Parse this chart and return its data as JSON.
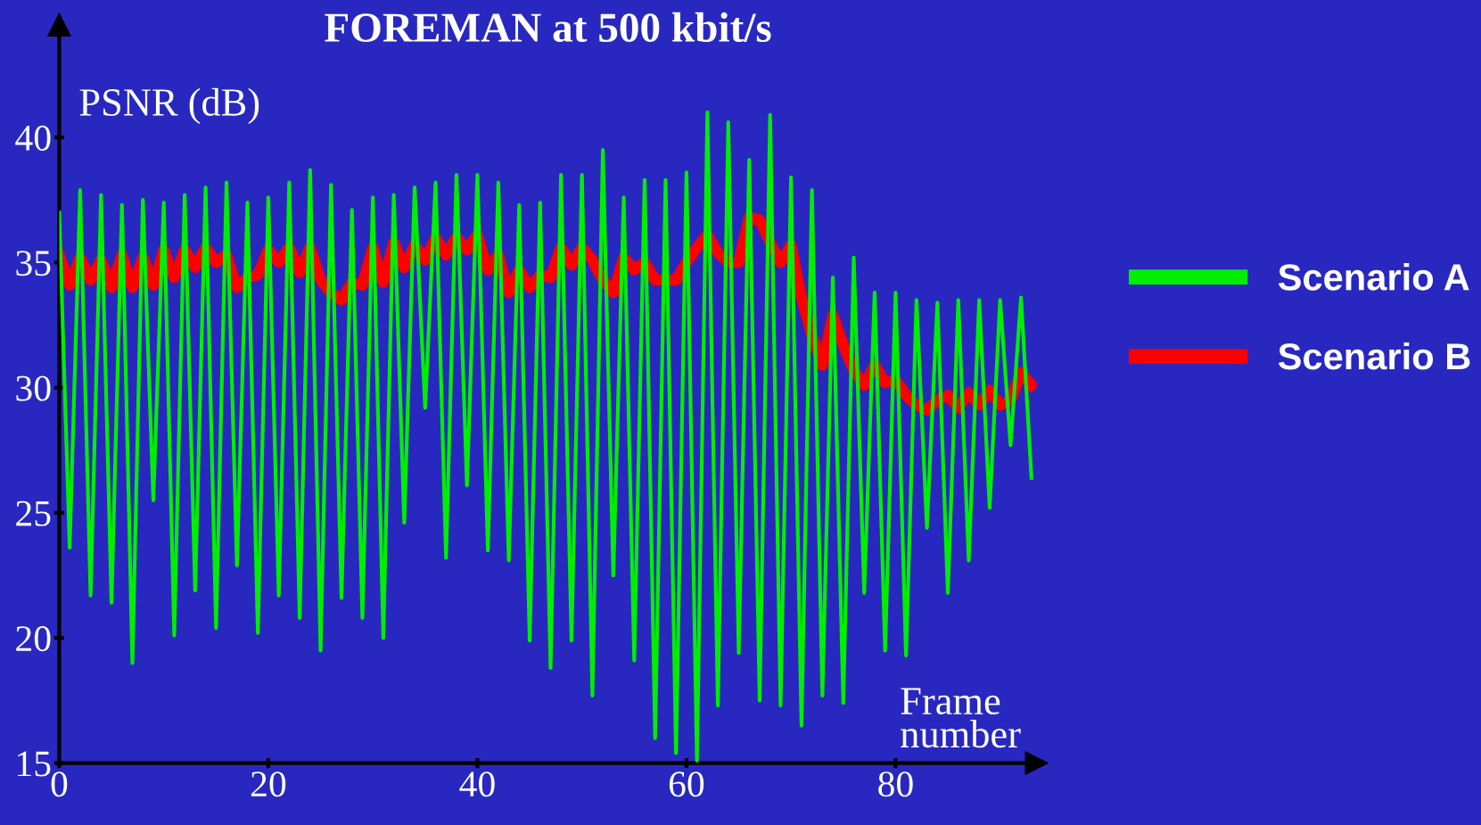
{
  "chart_data": {
    "type": "line",
    "title": "FOREMAN at 500 kbit/s",
    "xlabel": "Frame\nnumber",
    "ylabel": "PSNR (dB)",
    "x": [
      0,
      1,
      2,
      3,
      4,
      5,
      6,
      7,
      8,
      9,
      10,
      11,
      12,
      13,
      14,
      15,
      16,
      17,
      18,
      19,
      20,
      21,
      22,
      23,
      24,
      25,
      26,
      27,
      28,
      29,
      30,
      31,
      32,
      33,
      34,
      35,
      36,
      37,
      38,
      39,
      40,
      41,
      42,
      43,
      44,
      45,
      46,
      47,
      48,
      49,
      50,
      51,
      52,
      53,
      54,
      55,
      56,
      57,
      58,
      59,
      60,
      61,
      62,
      63,
      64,
      65,
      66,
      67,
      68,
      69,
      70,
      71,
      72,
      73,
      74,
      75,
      76,
      77,
      78,
      79,
      80,
      81,
      82,
      83,
      84,
      85,
      86,
      87,
      88,
      89,
      90,
      91,
      92,
      93
    ],
    "series": [
      {
        "name": "Scenario A",
        "color": "#00ee00",
        "values": [
          37.0,
          23.6,
          37.9,
          21.7,
          37.7,
          21.4,
          37.3,
          19.0,
          37.5,
          25.5,
          37.4,
          20.1,
          37.7,
          21.9,
          38.0,
          20.4,
          38.2,
          22.9,
          37.4,
          20.2,
          37.6,
          21.7,
          38.2,
          20.8,
          38.7,
          19.5,
          38.1,
          21.6,
          37.1,
          20.8,
          37.6,
          20.0,
          37.7,
          24.6,
          38.0,
          29.2,
          38.2,
          23.2,
          38.5,
          26.1,
          38.5,
          23.5,
          38.2,
          23.1,
          37.3,
          19.9,
          37.4,
          18.8,
          38.5,
          19.9,
          38.5,
          17.7,
          39.5,
          22.5,
          37.6,
          19.1,
          38.3,
          16.0,
          38.3,
          15.4,
          38.6,
          15.1,
          41.0,
          17.3,
          40.6,
          19.4,
          39.1,
          17.5,
          40.9,
          17.3,
          38.4,
          16.5,
          37.9,
          17.7,
          34.4,
          17.4,
          35.2,
          21.8,
          33.8,
          19.5,
          33.8,
          19.3,
          33.5,
          24.4,
          33.4,
          21.8,
          33.5,
          23.1,
          33.5,
          25.2,
          33.5,
          27.7,
          33.6,
          26.4
        ]
      },
      {
        "name": "Scenario B",
        "color": "#ff0000",
        "values": [
          35.3,
          34.1,
          35.2,
          34.3,
          35.1,
          34.0,
          35.3,
          34.0,
          35.2,
          34.1,
          35.5,
          34.4,
          35.5,
          34.8,
          35.6,
          35.0,
          35.3,
          34.0,
          34.4,
          34.5,
          35.5,
          35.0,
          35.6,
          34.6,
          35.6,
          34.3,
          33.8,
          33.5,
          34.2,
          34.1,
          35.6,
          34.2,
          35.8,
          34.8,
          35.7,
          35.1,
          36.0,
          35.3,
          36.0,
          35.5,
          36.1,
          34.7,
          35.3,
          33.8,
          34.7,
          34.0,
          34.5,
          34.4,
          35.6,
          34.9,
          35.6,
          35.1,
          34.3,
          33.8,
          35.2,
          34.7,
          35.0,
          34.3,
          34.3,
          34.3,
          35.0,
          35.6,
          36.1,
          35.4,
          35.0,
          35.0,
          36.8,
          36.7,
          35.8,
          35.0,
          35.7,
          33.6,
          32.1,
          30.9,
          32.9,
          31.7,
          30.7,
          30.1,
          30.9,
          30.2,
          30.3,
          29.7,
          29.3,
          29.1,
          29.5,
          29.7,
          29.2,
          29.8,
          29.3,
          29.9,
          29.3,
          29.5,
          30.6,
          30.1
        ]
      }
    ],
    "xlim": [
      0,
      93.5
    ],
    "ylim": [
      15,
      44.5
    ],
    "xticks": [
      0,
      20,
      40,
      60,
      80
    ],
    "yticks": [
      15,
      20,
      25,
      30,
      35,
      40
    ],
    "grid": false,
    "legend": "right",
    "marker": "none",
    "line_style": "solid"
  }
}
